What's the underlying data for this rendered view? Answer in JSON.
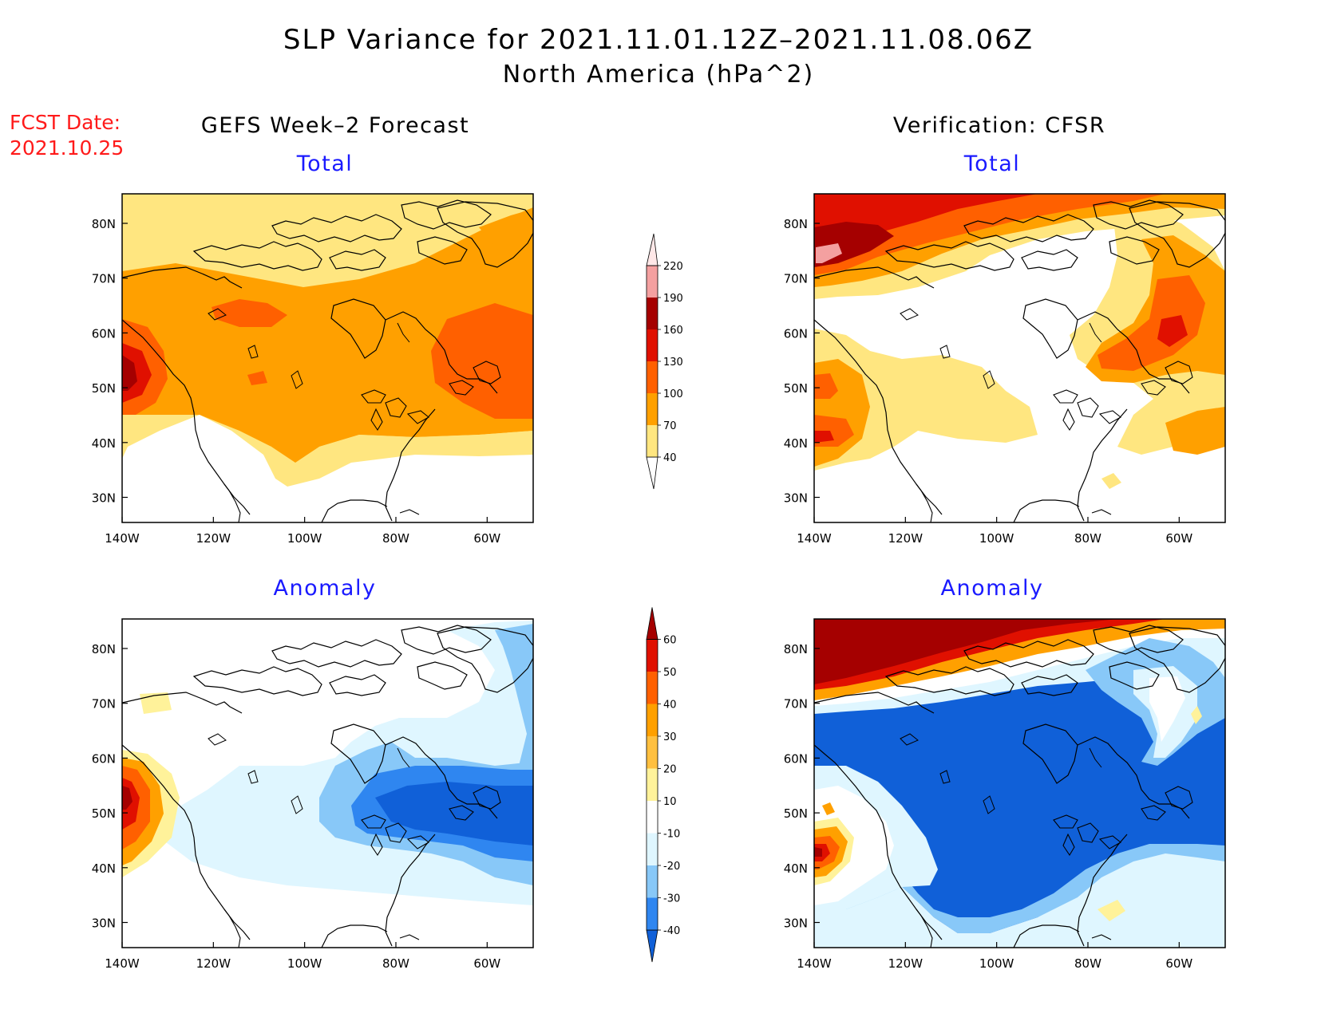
{
  "title": {
    "line1": "SLP Variance for 2021.11.01.12Z–2021.11.08.06Z",
    "line2": "North America (hPa^2)"
  },
  "forecast_date": {
    "label": "FCST Date:",
    "value": "2021.10.25"
  },
  "columns": {
    "left": "GEFS Week–2 Forecast",
    "right": "Verification: CFSR"
  },
  "panel_titles": {
    "total": "Total",
    "anomaly": "Anomaly"
  },
  "axes": {
    "lon_labels": [
      "140W",
      "120W",
      "100W",
      "80W",
      "60W"
    ],
    "lat_labels": [
      "80N",
      "70N",
      "60N",
      "50N",
      "40N",
      "30N"
    ]
  },
  "colorbars": {
    "total": {
      "levels": [
        "40",
        "70",
        "100",
        "130",
        "160",
        "190",
        "220"
      ],
      "colors": [
        "#ffe680",
        "#ffa000",
        "#ff6000",
        "#e01000",
        "#a50000",
        "#f4a0a0",
        "#ffe8e8"
      ]
    },
    "anomaly": {
      "levels": [
        "-40",
        "-30",
        "-20",
        "-10",
        "10",
        "20",
        "30",
        "40",
        "50",
        "60"
      ],
      "colors": [
        "#1060d8",
        "#2f86f0",
        "#88c8f8",
        "#dff6ff",
        "#ffffff",
        "#fff29a",
        "#ffc040",
        "#ffa000",
        "#ff6000",
        "#e01000",
        "#a50000"
      ]
    }
  }
}
